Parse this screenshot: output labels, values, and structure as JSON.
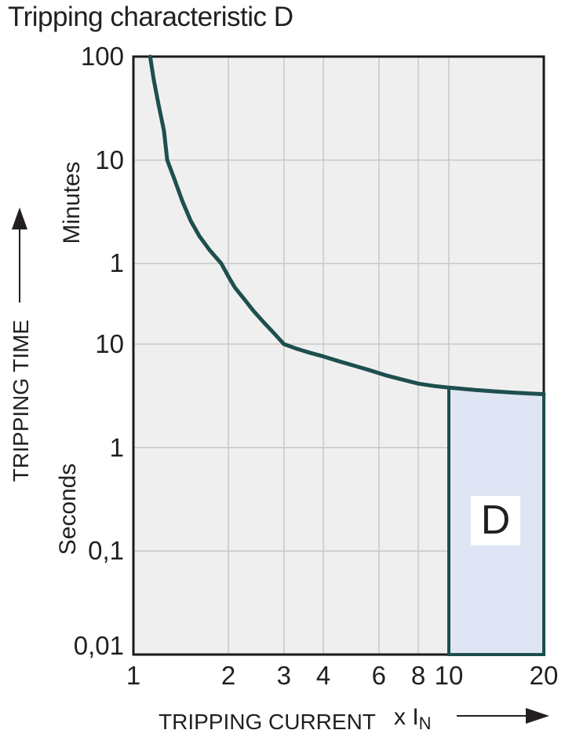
{
  "title": "Tripping characteristic D",
  "colors": {
    "plot_bg": "#f0efef",
    "grid": "#c9c8c8",
    "plot_border": "#1a1a1a",
    "curve": "#1d4f4e",
    "region_fill": "#dfe5f4",
    "region_border": "#1d4f4e",
    "text": "#231f20"
  },
  "chart_data": {
    "type": "line",
    "title": "Tripping characteristic D",
    "x_axis": {
      "title": "TRIPPING CURRENT",
      "unit": "x I",
      "unit_sub": "N",
      "scale": "log",
      "min": 1,
      "max": 20,
      "ticks": [
        {
          "label": "1",
          "v": 1
        },
        {
          "label": "2",
          "v": 2
        },
        {
          "label": "3",
          "v": 3
        },
        {
          "label": "4",
          "v": 4
        },
        {
          "label": "6",
          "v": 6
        },
        {
          "label": "8",
          "v": 8
        },
        {
          "label": "10",
          "v": 10
        },
        {
          "label": "20",
          "v": 20
        }
      ],
      "gridlines_v": [
        2,
        3,
        4,
        6,
        8,
        10
      ]
    },
    "y_axis": {
      "title": "TRIPPING TIME",
      "units": [
        "Minutes",
        "Seconds"
      ],
      "scale": "log",
      "min_seconds": 0.01,
      "max_seconds": 6000,
      "ticks": [
        {
          "label": "100",
          "seconds": 6000,
          "unit": "Minutes"
        },
        {
          "label": "10",
          "seconds": 600,
          "unit": "Minutes"
        },
        {
          "label": "1",
          "seconds": 60,
          "unit": "Minutes"
        },
        {
          "label": "10",
          "seconds": 10,
          "unit": "Seconds"
        },
        {
          "label": "1",
          "seconds": 1,
          "unit": "Seconds"
        },
        {
          "label": "0,1",
          "seconds": 0.1,
          "unit": "Seconds"
        },
        {
          "label": "0,01",
          "seconds": 0.01,
          "unit": "Seconds"
        }
      ],
      "gridlines_seconds": [
        600,
        60,
        10,
        1,
        0.1
      ]
    },
    "series": [
      {
        "name": "tripping-curve",
        "color": "#1d4f4e",
        "points": [
          [
            1.13,
            6000
          ],
          [
            1.16,
            3600
          ],
          [
            1.2,
            2100
          ],
          [
            1.25,
            1150
          ],
          [
            1.28,
            600
          ],
          [
            1.35,
            390
          ],
          [
            1.43,
            240
          ],
          [
            1.52,
            155
          ],
          [
            1.62,
            110
          ],
          [
            1.75,
            80
          ],
          [
            1.9,
            60
          ],
          [
            2.0,
            45
          ],
          [
            2.1,
            35
          ],
          [
            2.25,
            27
          ],
          [
            2.4,
            21
          ],
          [
            2.6,
            16
          ],
          [
            2.8,
            12.6
          ],
          [
            3.0,
            10
          ],
          [
            3.3,
            9.0
          ],
          [
            3.6,
            8.3
          ],
          [
            4.0,
            7.6
          ],
          [
            4.5,
            6.8
          ],
          [
            5.0,
            6.2
          ],
          [
            5.6,
            5.6
          ],
          [
            6.3,
            5.0
          ],
          [
            7.0,
            4.6
          ],
          [
            8.0,
            4.15
          ],
          [
            9.0,
            3.93
          ],
          [
            10.0,
            3.8
          ],
          [
            11.0,
            3.7
          ],
          [
            12.0,
            3.61
          ],
          [
            14.0,
            3.49
          ],
          [
            16.0,
            3.4
          ],
          [
            18.0,
            3.33
          ],
          [
            20.0,
            3.28
          ]
        ]
      }
    ],
    "region": {
      "label": "D",
      "x_from": 10,
      "x_to": 20,
      "t_bottom": 0.01,
      "fill": "#dfe5f4",
      "border": "#1d4f4e"
    }
  }
}
